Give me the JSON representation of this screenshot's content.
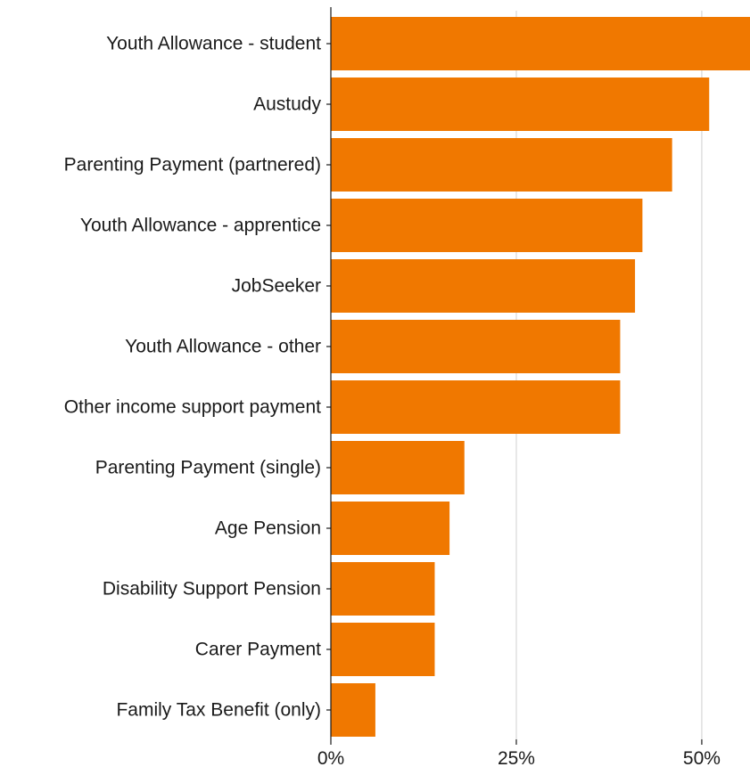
{
  "chart_data": {
    "type": "bar",
    "orientation": "horizontal",
    "categories": [
      "Youth Allowance - student",
      "Austudy",
      "Parenting Payment (partnered)",
      "Youth Allowance - apprentice",
      "JobSeeker",
      "Youth Allowance - other",
      "Other income support payment",
      "Parenting Payment (single)",
      "Age Pension",
      "Disability Support Pension",
      "Carer Payment",
      "Family Tax Benefit (only)"
    ],
    "values": [
      56.5,
      51,
      46,
      42,
      41,
      39,
      39,
      18,
      16,
      14,
      14,
      6
    ],
    "xlim": [
      0,
      56.5
    ],
    "xticks": [
      0,
      25,
      50
    ],
    "xtick_labels": [
      "0%",
      "25%",
      "50%"
    ],
    "grid": "vertical",
    "bar_color": "#F07800",
    "title": "",
    "xlabel": "",
    "ylabel": ""
  }
}
